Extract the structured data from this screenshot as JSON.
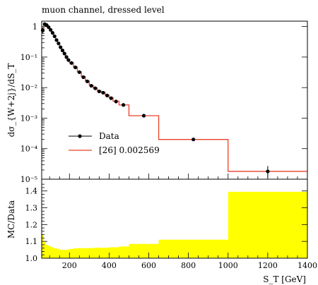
{
  "title": "muon channel, dressed level",
  "chart_data": [
    {
      "type": "line",
      "panel": "main",
      "ylabel": "dσ_{W+2j}/dS_T",
      "yscale": "log",
      "ylim": [
        1e-05,
        1.5
      ],
      "xlim": [
        60,
        1400
      ],
      "xticks": [
        200,
        400,
        600,
        800,
        1000,
        1200,
        1400
      ],
      "ytick_labels": [
        "1",
        "10⁻¹",
        "10⁻²",
        "10⁻³",
        "10⁻⁴",
        "10⁻⁵"
      ],
      "legend_position": "lower-left",
      "series": [
        {
          "name": "Data",
          "color": "#000000",
          "style": "points-with-errorbars",
          "x": [
            65,
            75,
            85,
            95,
            105,
            115,
            125,
            135,
            145,
            155,
            165,
            175,
            185,
            195,
            210,
            230,
            250,
            270,
            290,
            310,
            330,
            350,
            370,
            390,
            410,
            435,
            472,
            575,
            825,
            1200
          ],
          "y": [
            0.75,
            1.2,
            1.12,
            0.95,
            0.78,
            0.62,
            0.48,
            0.36,
            0.28,
            0.21,
            0.165,
            0.13,
            0.1,
            0.08,
            0.064,
            0.046,
            0.032,
            0.022,
            0.016,
            0.0115,
            0.0095,
            0.0075,
            0.0068,
            0.0055,
            0.0045,
            0.0035,
            0.0027,
            0.0012,
            0.0002,
            1.8e-05
          ],
          "yerr_low": [
            0.15,
            0,
            0,
            0,
            0,
            0,
            0,
            0,
            0,
            0,
            0,
            0,
            0,
            0,
            0,
            0,
            0,
            0,
            0,
            0,
            0,
            0,
            0,
            0,
            0,
            0,
            0,
            0,
            0,
            7e-06
          ],
          "yerr_high": [
            0.15,
            0,
            0,
            0,
            0,
            0,
            0,
            0,
            0,
            0,
            0,
            0,
            0,
            0,
            0,
            0,
            0,
            0,
            0,
            0,
            0,
            0,
            0,
            0,
            0,
            0,
            0,
            0,
            0,
            9e-06
          ]
        },
        {
          "name": "[26] 0.002569",
          "color": "#e8402a",
          "style": "step",
          "edges": [
            60,
            70,
            80,
            90,
            100,
            110,
            120,
            130,
            140,
            150,
            160,
            170,
            180,
            190,
            200,
            220,
            240,
            260,
            280,
            300,
            320,
            340,
            360,
            380,
            400,
            420,
            450,
            500,
            650,
            1000,
            1400
          ],
          "values": [
            0.8,
            1.25,
            1.15,
            0.97,
            0.8,
            0.63,
            0.49,
            0.37,
            0.29,
            0.22,
            0.17,
            0.135,
            0.105,
            0.082,
            0.066,
            0.047,
            0.033,
            0.023,
            0.0165,
            0.012,
            0.0098,
            0.0078,
            0.007,
            0.0057,
            0.0047,
            0.0036,
            0.0027,
            0.0012,
            0.0002,
            1.8e-05
          ]
        }
      ]
    },
    {
      "type": "area",
      "panel": "ratio",
      "ylabel": "MC/Data",
      "xlabel": "S_T [GeV]",
      "ylim": [
        1.0,
        1.47
      ],
      "xlim": [
        60,
        1400
      ],
      "yticks": [
        1.0,
        1.1,
        1.2,
        1.3,
        1.4
      ],
      "ytick_labels": [
        "1.0",
        "1.1",
        "1.2",
        "1.3",
        "1.4"
      ],
      "xtick_labels": [
        "200",
        "400",
        "600",
        "800",
        "1000",
        "1200",
        "1400"
      ],
      "band_color": "#ffff00",
      "edges": [
        60,
        70,
        80,
        90,
        100,
        110,
        120,
        130,
        140,
        150,
        160,
        170,
        180,
        190,
        200,
        220,
        240,
        260,
        280,
        300,
        320,
        340,
        360,
        380,
        400,
        420,
        450,
        500,
        650,
        1000,
        1400
      ],
      "band_upper": [
        1.14,
        1.1,
        1.08,
        1.075,
        1.07,
        1.065,
        1.06,
        1.058,
        1.055,
        1.05,
        1.05,
        1.05,
        1.05,
        1.052,
        1.055,
        1.058,
        1.06,
        1.06,
        1.06,
        1.06,
        1.062,
        1.062,
        1.062,
        1.062,
        1.065,
        1.065,
        1.07,
        1.085,
        1.11,
        1.395
      ]
    }
  ]
}
